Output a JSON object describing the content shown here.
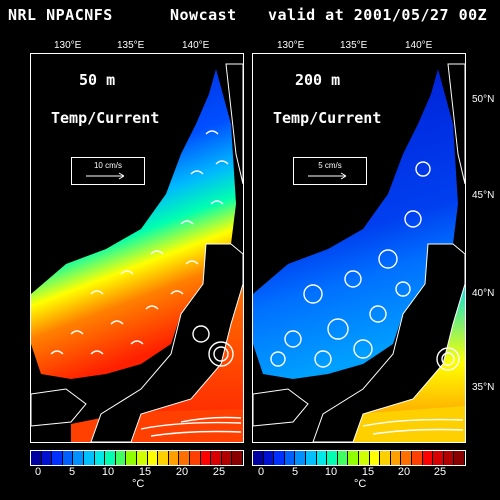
{
  "header": {
    "source": "NRL NPACNFS",
    "product": "Nowcast",
    "valid": "valid at 2001/05/27 00Z"
  },
  "lon_labels": [
    "130°E",
    "135°E",
    "140°E"
  ],
  "lat_labels": [
    "50°N",
    "45°N",
    "40°N",
    "35°N"
  ],
  "panels": [
    {
      "depth": "50 m",
      "variable": "Temp/Current",
      "scale": "10 cm/s"
    },
    {
      "depth": "200 m",
      "variable": "Temp/Current",
      "scale": "5 cm/s"
    }
  ],
  "colorbar": {
    "ticks": [
      "0",
      "5",
      "10",
      "15",
      "20",
      "25"
    ],
    "unit": "°C",
    "colors": [
      "#0000a0",
      "#0010d0",
      "#0030ff",
      "#0060ff",
      "#0090ff",
      "#00c0ff",
      "#00e8e8",
      "#00ffb0",
      "#40ff60",
      "#90ff00",
      "#d0ff00",
      "#ffff00",
      "#ffd000",
      "#ffa000",
      "#ff7000",
      "#ff4000",
      "#ff0000",
      "#d80000",
      "#b00000",
      "#880000"
    ]
  },
  "styles": {
    "background": "#000000",
    "land": "#000000",
    "text": "#ffffff"
  }
}
